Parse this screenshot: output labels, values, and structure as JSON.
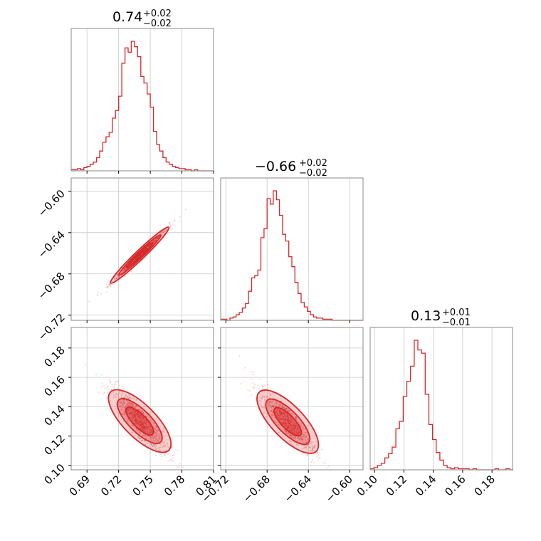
{
  "chart_data": {
    "type": "corner",
    "color": "#d62728",
    "grid": true,
    "parameters": [
      {
        "title_main": "0.74",
        "title_plus": "+0.02",
        "title_minus": "−0.02",
        "median": 0.74,
        "err_plus": 0.02,
        "err_minus": 0.02,
        "range": [
          0.675,
          0.81
        ]
      },
      {
        "title_main": "−0.66",
        "title_plus": "+0.02",
        "title_minus": "−0.02",
        "median": -0.66,
        "err_plus": 0.02,
        "err_minus": 0.02,
        "range": [
          -0.725,
          -0.587
        ]
      },
      {
        "title_main": "0.13",
        "title_plus": "+0.01",
        "title_minus": "−0.01",
        "median": 0.13,
        "err_plus": 0.01,
        "err_minus": 0.01,
        "range": [
          0.097,
          0.194
        ]
      }
    ],
    "ticks": [
      {
        "values": [
          0.69,
          0.72,
          0.75,
          0.78,
          0.81
        ],
        "labels": [
          "0.69",
          "0.72",
          "0.75",
          "0.78",
          "0.81"
        ]
      },
      {
        "values": [
          -0.72,
          -0.68,
          -0.64,
          -0.6
        ],
        "labels": [
          "−0.72",
          "−0.68",
          "−0.64",
          "−0.60"
        ]
      },
      {
        "values": [
          0.1,
          0.12,
          0.14,
          0.16,
          0.18
        ],
        "labels": [
          "0.10",
          "0.12",
          "0.14",
          "0.16",
          "0.18"
        ]
      }
    ],
    "histograms": [
      {
        "param": 0,
        "bin_start": 0.675,
        "bin_width": 0.003,
        "counts": [
          1,
          1,
          2,
          1,
          3,
          4,
          6,
          8,
          12,
          18,
          26,
          31,
          35,
          48,
          55,
          68,
          98,
          112,
          108,
          118,
          113,
          104,
          86,
          80,
          70,
          58,
          36,
          24,
          18,
          12,
          8,
          6,
          4,
          3,
          2,
          2,
          1,
          1,
          0,
          1,
          0,
          0,
          0,
          0,
          0
        ]
      },
      {
        "param": 1,
        "bin_start": -0.725,
        "bin_width": 0.003,
        "counts": [
          1,
          1,
          0,
          2,
          3,
          5,
          7,
          11,
          15,
          26,
          38,
          40,
          45,
          74,
          82,
          109,
          104,
          116,
          108,
          94,
          77,
          71,
          57,
          48,
          34,
          24,
          16,
          12,
          8,
          5,
          3,
          2,
          2,
          1,
          1,
          1,
          0,
          0,
          0,
          0,
          0,
          0,
          0,
          0,
          0,
          0
        ]
      },
      {
        "param": 2,
        "bin_start": 0.097,
        "bin_width": 0.0025,
        "counts": [
          1,
          2,
          4,
          6,
          11,
          15,
          21,
          38,
          45,
          68,
          82,
          96,
          120,
          111,
          108,
          70,
          42,
          28,
          16,
          9,
          4,
          2,
          1,
          2,
          1,
          1,
          1,
          0,
          1,
          0,
          0,
          0,
          0,
          0,
          1,
          0,
          0,
          1,
          0
        ]
      }
    ],
    "scatter_panels": [
      {
        "x_param": 0,
        "y_param": 1,
        "relation": "y = 0.98*x - 1.387",
        "x_spread": 0.012,
        "y_scatter": 0.002
      },
      {
        "x_param": 0,
        "y_param": 2,
        "relation": "y = -0.72*x + 0.663",
        "x_spread": 0.012,
        "y_scatter": 0.005
      },
      {
        "x_param": 1,
        "y_param": 2,
        "relation": "y = -0.73*x - 0.352",
        "x_spread": 0.012,
        "y_scatter": 0.005
      }
    ]
  }
}
